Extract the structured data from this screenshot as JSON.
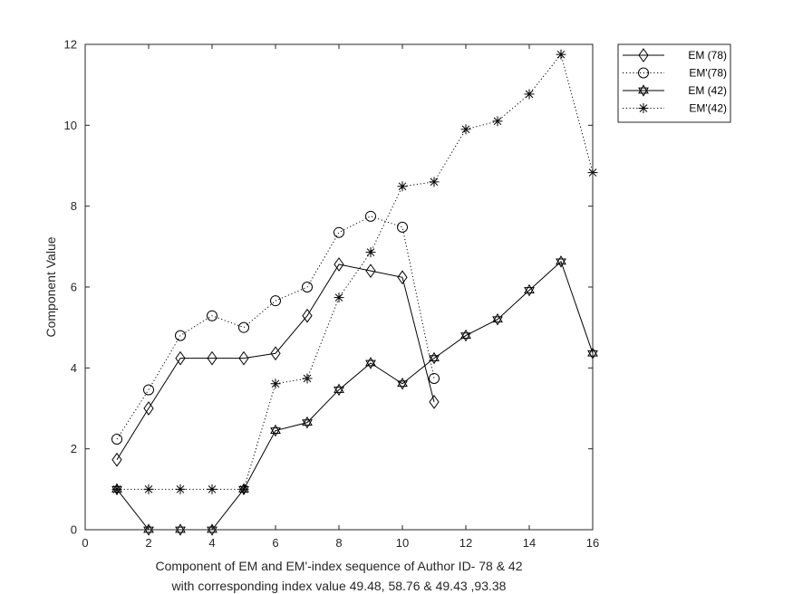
{
  "chart_data": {
    "type": "line",
    "xlabel_lines": [
      "Component of EM and EM'-index sequence of Author ID- 78 & 42",
      "with corresponding index value 49.48, 58.76 & 49.43 ,93.38"
    ],
    "ylabel": "Component Value",
    "xlim": [
      0,
      16
    ],
    "ylim": [
      0,
      12
    ],
    "xticks": [
      0,
      2,
      4,
      6,
      8,
      10,
      12,
      14,
      16
    ],
    "yticks": [
      0,
      2,
      4,
      6,
      8,
      10,
      12
    ],
    "grid": false,
    "legend_position": "top-right outside",
    "series": [
      {
        "name": "EM (78)",
        "line_style": "solid",
        "marker": "diamond",
        "color": "#000000",
        "x": [
          1,
          2,
          3,
          4,
          5,
          6,
          7,
          8,
          9,
          10,
          11
        ],
        "y": [
          1.73,
          3.0,
          4.24,
          4.24,
          4.24,
          4.36,
          5.29,
          6.56,
          6.4,
          6.24,
          3.16
        ]
      },
      {
        "name": "EM'(78)",
        "line_style": "dotted",
        "marker": "circle",
        "color": "#000000",
        "x": [
          1,
          2,
          3,
          4,
          5,
          6,
          7,
          8,
          9,
          10,
          11
        ],
        "y": [
          2.24,
          3.46,
          4.8,
          5.29,
          5.0,
          5.66,
          6.0,
          7.35,
          7.75,
          7.48,
          3.74
        ]
      },
      {
        "name": "EM (42)",
        "line_style": "solid",
        "marker": "hexagram",
        "color": "#000000",
        "x": [
          1,
          2,
          3,
          4,
          5,
          6,
          7,
          8,
          9,
          10,
          11,
          12,
          13,
          14,
          15,
          16
        ],
        "y": [
          1.0,
          0.0,
          0.0,
          0.0,
          1.0,
          2.45,
          2.65,
          3.46,
          4.12,
          3.61,
          4.24,
          4.8,
          5.2,
          5.92,
          6.63,
          4.36
        ]
      },
      {
        "name": "EM'(42)",
        "line_style": "dotted",
        "marker": "asterisk",
        "color": "#000000",
        "x": [
          1,
          2,
          3,
          4,
          5,
          6,
          7,
          8,
          9,
          10,
          11,
          12,
          13,
          14,
          15,
          16
        ],
        "y": [
          1.0,
          1.0,
          1.0,
          1.0,
          1.0,
          3.61,
          3.74,
          5.74,
          6.86,
          8.49,
          8.6,
          9.9,
          10.1,
          10.77,
          11.75,
          8.83
        ]
      }
    ]
  }
}
